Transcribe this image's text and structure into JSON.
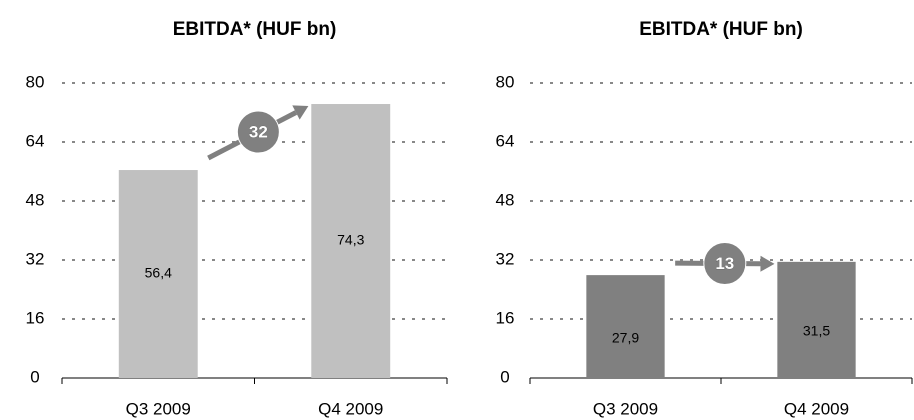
{
  "chart_data": [
    {
      "type": "bar",
      "title": "EBITDA* (HUF bn)",
      "categories": [
        "Q3 2009",
        "Q4 2009"
      ],
      "values": [
        56.4,
        74.3
      ],
      "value_labels": [
        "56,4",
        "74,3"
      ],
      "color": "#c0c0c0",
      "ylim": [
        0,
        80
      ],
      "yticks": [
        0,
        16,
        32,
        48,
        64,
        80
      ],
      "grid": true,
      "annotation": 32
    },
    {
      "type": "bar",
      "title": "EBITDA* (HUF bn)",
      "categories": [
        "Q3 2009",
        "Q4 2009"
      ],
      "values": [
        27.9,
        31.5
      ],
      "value_labels": [
        "27,9",
        "31,5"
      ],
      "color": "#808080",
      "ylim": [
        0,
        80
      ],
      "yticks": [
        0,
        16,
        32,
        48,
        64,
        80
      ],
      "grid": true,
      "annotation": 13
    }
  ]
}
